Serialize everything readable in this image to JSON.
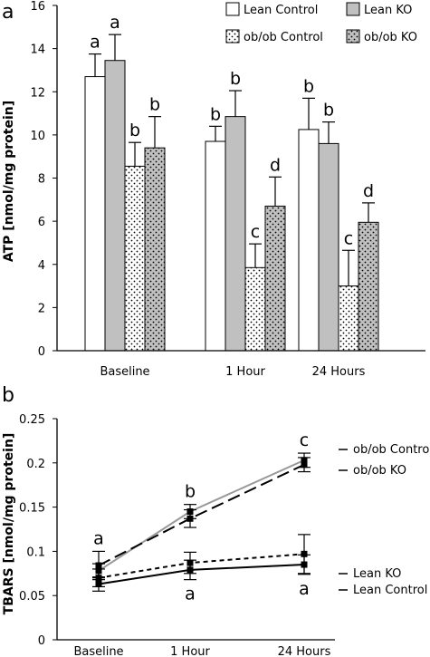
{
  "chart_data": [
    {
      "panel": "a",
      "type": "bar",
      "ylabel": "ATP [nmol/mg protein]",
      "ylim": [
        0,
        16
      ],
      "yticks": [
        0,
        2,
        4,
        6,
        8,
        10,
        12,
        14,
        16
      ],
      "categories": [
        "Baseline",
        "1 Hour",
        "24 Hours"
      ],
      "series": [
        {
          "name": "Lean Control",
          "values": [
            12.7,
            9.7,
            10.25
          ],
          "errors": [
            1.05,
            0.7,
            1.45
          ],
          "labels": [
            "a",
            "b",
            "b"
          ],
          "fill": "#ffffff",
          "pattern": "none"
        },
        {
          "name": "Lean KO",
          "values": [
            13.45,
            10.85,
            9.6
          ],
          "errors": [
            1.2,
            1.2,
            1.0
          ],
          "labels": [
            "a",
            "b",
            "b"
          ],
          "fill": "#c0c0c0",
          "pattern": "none"
        },
        {
          "name": "ob/ob Control",
          "values": [
            8.55,
            3.85,
            3.0
          ],
          "errors": [
            1.1,
            1.1,
            1.65
          ],
          "labels": [
            "b",
            "c",
            "c"
          ],
          "fill": "#ffffff",
          "pattern": "dots"
        },
        {
          "name": "ob/ob KO",
          "values": [
            9.4,
            6.7,
            5.95
          ],
          "errors": [
            1.45,
            1.35,
            0.9
          ],
          "labels": [
            "b",
            "d",
            "d"
          ],
          "fill": "#c0c0c0",
          "pattern": "dots"
        }
      ],
      "legend": "top-right"
    },
    {
      "panel": "b",
      "type": "line",
      "ylabel": "TBARS [nmol/mg protein]",
      "ylim": [
        0,
        0.25
      ],
      "yticks": [
        "0",
        "0.05",
        "0.1",
        "0.15",
        "0.2",
        "0.25"
      ],
      "categories": [
        "Baseline",
        "1 Hour",
        "24 Hours"
      ],
      "series": [
        {
          "name": "ob/ob Control",
          "values": [
            0.078,
            0.145,
            0.203
          ],
          "errors": [
            0.008,
            0.008,
            0.008
          ],
          "color": "#999999",
          "dash": "solid"
        },
        {
          "name": "ob/ob KO",
          "values": [
            0.084,
            0.137,
            0.198
          ],
          "errors": [
            0.016,
            0.01,
            0.008
          ],
          "color": "#000000",
          "dash": "long"
        },
        {
          "name": "Lean KO",
          "values": [
            0.07,
            0.087,
            0.097
          ],
          "errors": [
            0.01,
            0.012,
            0.022
          ],
          "color": "#000000",
          "dash": "short"
        },
        {
          "name": "Lean Control",
          "values": [
            0.063,
            0.079,
            0.085
          ],
          "errors": [
            0.008,
            0.011,
            0.011
          ],
          "color": "#000000",
          "dash": "solid"
        }
      ],
      "annotations": [
        {
          "label": "a",
          "category": 0,
          "position": "above"
        },
        {
          "label": "b",
          "category": 1,
          "position": "above"
        },
        {
          "label": "c",
          "category": 2,
          "position": "above"
        },
        {
          "label": "a",
          "category": 1,
          "position": "below"
        },
        {
          "label": "a",
          "category": 2,
          "position": "below"
        }
      ],
      "legend": "right"
    }
  ]
}
